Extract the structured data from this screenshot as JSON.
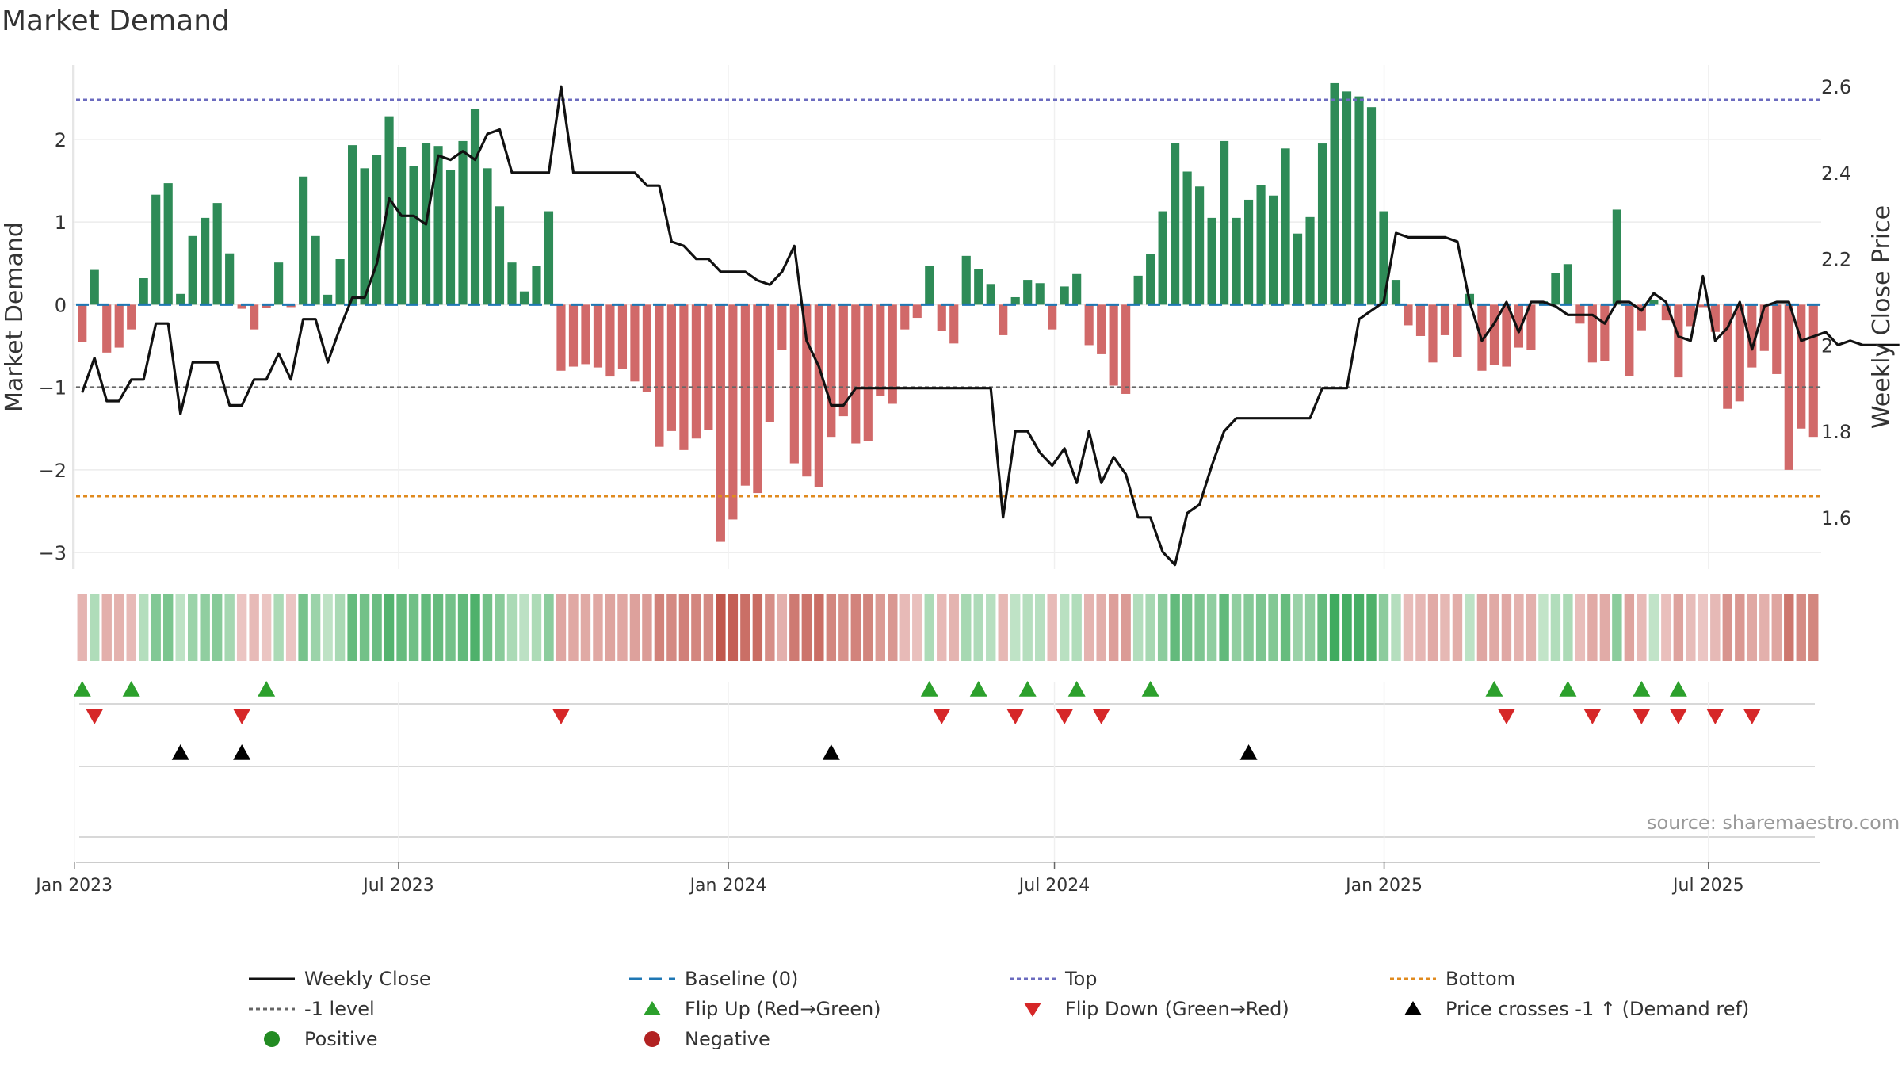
{
  "title": "Market Demand",
  "source_note": "source: sharemaestro.com",
  "colors": {
    "positive_bar": "#2e8b57",
    "negative_bar": "#cd5c5c",
    "price_line": "#111111",
    "baseline": "#1f77b4",
    "top_line": "#6b6bbf",
    "bottom_line": "#e08a1e",
    "minus1_line": "#666666",
    "flip_up": "#2ca02c",
    "flip_down": "#d62728",
    "cross": "#000000"
  },
  "chart_data": [
    {
      "type": "bar",
      "name": "main",
      "ylabel": "Market Demand",
      "y2label": "Weekly Close Price",
      "ylim": [
        -3.2,
        2.9
      ],
      "y2lim": [
        1.48,
        2.65
      ],
      "yticks": [
        "2",
        "1",
        "0",
        "−1",
        "−2",
        "−3"
      ],
      "y2ticks": [
        "2.6",
        "2.4",
        "2.2",
        "2",
        "1.8",
        "1.6"
      ],
      "x_start": "2023-01-02",
      "x_end": "2025-09-01",
      "xticks": [
        "Jan 2023",
        "Jul 2023",
        "Jan 2024",
        "Jul 2024",
        "Jan 2025",
        "Jul 2025"
      ],
      "reference_lines": {
        "baseline": 0,
        "minus1": -1,
        "top": 2.48,
        "bottom": -2.32
      },
      "grid": true,
      "series": [
        {
          "name": "Market Demand",
          "values": [
            -0.45,
            0.42,
            -0.58,
            -0.52,
            -0.3,
            0.32,
            1.33,
            1.47,
            0.13,
            0.83,
            1.05,
            1.23,
            0.62,
            -0.05,
            -0.3,
            -0.04,
            0.51,
            -0.03,
            1.55,
            0.83,
            0.12,
            0.55,
            1.93,
            1.65,
            1.81,
            2.28,
            1.91,
            1.68,
            1.96,
            1.92,
            1.63,
            1.98,
            2.37,
            1.65,
            1.19,
            0.51,
            0.16,
            0.47,
            1.13,
            -0.8,
            -0.75,
            -0.72,
            -0.76,
            -0.87,
            -0.78,
            -0.93,
            -1.06,
            -1.72,
            -1.53,
            -1.76,
            -1.62,
            -1.52,
            -2.87,
            -2.6,
            -2.19,
            -2.28,
            -1.42,
            -0.55,
            -1.92,
            -2.08,
            -2.21,
            -1.6,
            -1.35,
            -1.68,
            -1.65,
            -1.1,
            -1.2,
            -0.3,
            -0.16,
            0.47,
            -0.32,
            -0.47,
            0.59,
            0.43,
            0.25,
            -0.37,
            0.09,
            0.3,
            0.26,
            -0.3,
            0.22,
            0.37,
            -0.49,
            -0.6,
            -0.98,
            -1.08,
            0.35,
            0.61,
            1.13,
            1.96,
            1.61,
            1.43,
            1.05,
            1.98,
            1.05,
            1.27,
            1.45,
            1.32,
            1.89,
            0.86,
            1.06,
            1.95,
            2.68,
            2.58,
            2.52,
            2.39,
            1.13,
            0.3,
            -0.25,
            -0.38,
            -0.7,
            -0.37,
            -0.63,
            0.13,
            -0.8,
            -0.73,
            -0.75,
            -0.52,
            -0.55,
            0.04,
            0.38,
            0.49,
            -0.23,
            -0.7,
            -0.68,
            1.15,
            -0.86,
            -0.31,
            0.06,
            -0.19,
            -0.88,
            -0.26,
            -0.03,
            -0.33,
            -1.26,
            -1.17,
            -0.76,
            -0.56,
            -0.84,
            -2.0,
            -1.5,
            -1.6
          ]
        },
        {
          "name": "Weekly Close",
          "values": [
            1.89,
            1.97,
            1.87,
            1.87,
            1.92,
            1.92,
            2.05,
            2.05,
            1.84,
            1.96,
            1.96,
            1.96,
            1.86,
            1.86,
            1.92,
            1.92,
            1.98,
            1.92,
            2.06,
            2.06,
            1.96,
            2.04,
            2.11,
            2.11,
            2.19,
            2.34,
            2.3,
            2.3,
            2.28,
            2.44,
            2.43,
            2.45,
            2.43,
            2.49,
            2.5,
            2.4,
            2.4,
            2.4,
            2.4,
            2.6,
            2.4,
            2.4,
            2.4,
            2.4,
            2.4,
            2.4,
            2.37,
            2.37,
            2.24,
            2.23,
            2.2,
            2.2,
            2.17,
            2.17,
            2.17,
            2.15,
            2.14,
            2.17,
            2.23,
            2.01,
            1.95,
            1.86,
            1.86,
            1.9,
            1.9,
            1.9,
            1.9,
            1.9,
            1.9,
            1.9,
            1.9,
            1.9,
            1.9,
            1.9,
            1.9,
            1.6,
            1.8,
            1.8,
            1.75,
            1.72,
            1.76,
            1.68,
            1.8,
            1.68,
            1.74,
            1.7,
            1.6,
            1.6,
            1.52,
            1.49,
            1.61,
            1.63,
            1.72,
            1.8,
            1.83,
            1.83,
            1.83,
            1.83,
            1.83,
            1.83,
            1.83,
            1.9,
            1.9,
            1.9,
            2.06,
            2.08,
            2.1,
            2.26,
            2.25,
            2.25,
            2.25,
            2.25,
            2.24,
            2.1,
            2.01,
            2.05,
            2.1,
            2.03,
            2.1,
            2.1,
            2.09,
            2.07,
            2.07,
            2.07,
            2.05,
            2.1,
            2.1,
            2.08,
            2.12,
            2.1,
            2.02,
            2.01,
            2.16,
            2.01,
            2.04,
            2.1,
            1.99,
            2.09,
            2.1,
            2.1,
            2.01,
            2.02,
            2.03,
            2.0,
            2.01,
            2.0,
            2.0,
            2.0,
            2.0
          ]
        }
      ]
    },
    {
      "type": "heatmap",
      "name": "demand-strip",
      "note": "one colored cell per week, colored by the Market Demand value above"
    },
    {
      "type": "scatter",
      "name": "flip-events",
      "flip_up_weeks": [
        0,
        4,
        15,
        69,
        73,
        77,
        81,
        87,
        115,
        121,
        127,
        130
      ],
      "flip_down_weeks": [
        1,
        13,
        39,
        70,
        76,
        80,
        83,
        116,
        123,
        127,
        130,
        133,
        136
      ],
      "cross_weeks": [
        8,
        13,
        61,
        95
      ]
    }
  ],
  "legend": {
    "weekly_close": "Weekly Close",
    "baseline": "Baseline (0)",
    "top": "Top",
    "bottom": "Bottom",
    "minus1": "-1 level",
    "flip_up": "Flip Up (Red→Green)",
    "flip_down": "Flip Down (Green→Red)",
    "cross": "Price crosses -1 ↑ (Demand ref)",
    "positive": "Positive",
    "negative": "Negative"
  }
}
